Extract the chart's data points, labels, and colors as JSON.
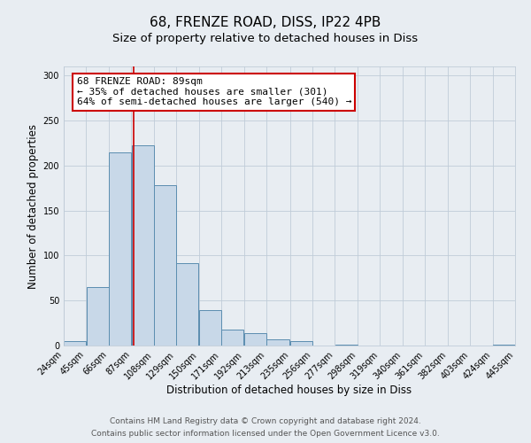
{
  "title1": "68, FRENZE ROAD, DISS, IP22 4PB",
  "title2": "Size of property relative to detached houses in Diss",
  "xlabel": "Distribution of detached houses by size in Diss",
  "ylabel": "Number of detached properties",
  "bar_edges": [
    24,
    45,
    66,
    87,
    108,
    129,
    150,
    171,
    192,
    213,
    235,
    256,
    277,
    298,
    319,
    340,
    361,
    382,
    403,
    424,
    445
  ],
  "bar_heights": [
    5,
    65,
    215,
    222,
    178,
    92,
    39,
    18,
    14,
    7,
    5,
    0,
    1,
    0,
    0,
    0,
    0,
    0,
    0,
    1
  ],
  "bar_color": "#c8d8e8",
  "bar_edge_color": "#5b8db0",
  "vline_x": 89,
  "vline_color": "#cc0000",
  "annotation_title": "68 FRENZE ROAD: 89sqm",
  "annotation_line1": "← 35% of detached houses are smaller (301)",
  "annotation_line2": "64% of semi-detached houses are larger (540) →",
  "annotation_box_facecolor": "#ffffff",
  "annotation_box_edgecolor": "#cc0000",
  "ylim": [
    0,
    310
  ],
  "tick_labels": [
    "24sqm",
    "45sqm",
    "66sqm",
    "87sqm",
    "108sqm",
    "129sqm",
    "150sqm",
    "171sqm",
    "192sqm",
    "213sqm",
    "235sqm",
    "256sqm",
    "277sqm",
    "298sqm",
    "319sqm",
    "340sqm",
    "361sqm",
    "382sqm",
    "403sqm",
    "424sqm",
    "445sqm"
  ],
  "footer1": "Contains HM Land Registry data © Crown copyright and database right 2024.",
  "footer2": "Contains public sector information licensed under the Open Government Licence v3.0.",
  "fig_background": "#e8edf2",
  "plot_background": "#e8edf2",
  "grid_color": "#c0ccd8",
  "title_fontsize": 11,
  "subtitle_fontsize": 9.5,
  "axis_label_fontsize": 8.5,
  "tick_fontsize": 7,
  "footer_fontsize": 6.5,
  "annotation_fontsize": 8
}
